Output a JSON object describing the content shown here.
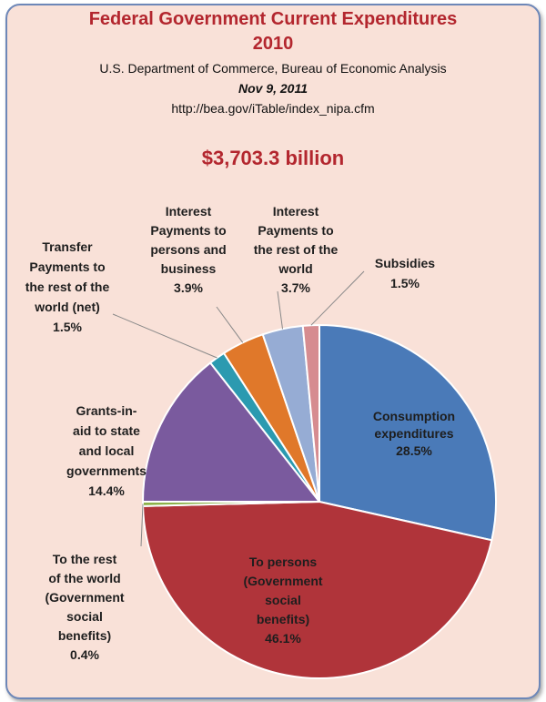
{
  "header": {
    "title_line1": "Federal Government Current Expenditures",
    "title_line2": "2010",
    "source": "U.S. Department of Commerce, Bureau of Economic Analysis",
    "date": "Nov 9, 2011",
    "url": "http://bea.gov/iTable/index_nipa.cfm",
    "total": "$3,703.3 billion"
  },
  "chart_data": {
    "type": "pie",
    "title": "Federal Government Current Expenditures 2010",
    "total": "$3,703.3 billion",
    "unit": "%",
    "slices": [
      {
        "label": "Consumption expenditures",
        "value": 28.5,
        "color": "#4a7ab8"
      },
      {
        "label": "To persons (Government social benefits)",
        "value": 46.1,
        "color": "#b0343a"
      },
      {
        "label": "To the rest of the world (Government social benefits)",
        "value": 0.4,
        "color": "#8db24a"
      },
      {
        "label": "Grants-in-aid to state and local governments",
        "value": 14.4,
        "color": "#7a5a9e"
      },
      {
        "label": "Transfer Payments to the rest of the world (net)",
        "value": 1.5,
        "color": "#2b9ab0"
      },
      {
        "label": "Interest Payments to persons and business",
        "value": 3.9,
        "color": "#e0782a"
      },
      {
        "label": "Interest Payments to the rest of the world",
        "value": 3.7,
        "color": "#96acd4"
      },
      {
        "label": "Subsidies",
        "value": 1.5,
        "color": "#d68c90"
      }
    ]
  },
  "labels": {
    "consumption": [
      "Consumption",
      "expenditures",
      "28.5%"
    ],
    "to_persons": [
      "To persons",
      "(Government",
      "social",
      "benefits)",
      "46.1%"
    ],
    "rest_world": [
      "To the rest",
      "of the world",
      "(Government",
      "social",
      "benefits)",
      "0.4%"
    ],
    "grants": [
      "Grants-in-",
      "aid to state",
      "and local",
      "governments",
      "14.4%"
    ],
    "transfer": [
      "Transfer",
      "Payments to",
      "the rest of the",
      "world (net)",
      "1.5%"
    ],
    "interest_persons": [
      "Interest",
      "Payments to",
      "persons and",
      "business",
      "3.9%"
    ],
    "interest_world": [
      "Interest",
      "Payments to",
      "the rest of the",
      "world",
      "3.7%"
    ],
    "subsidies": [
      "Subsidies",
      "1.5%"
    ]
  }
}
